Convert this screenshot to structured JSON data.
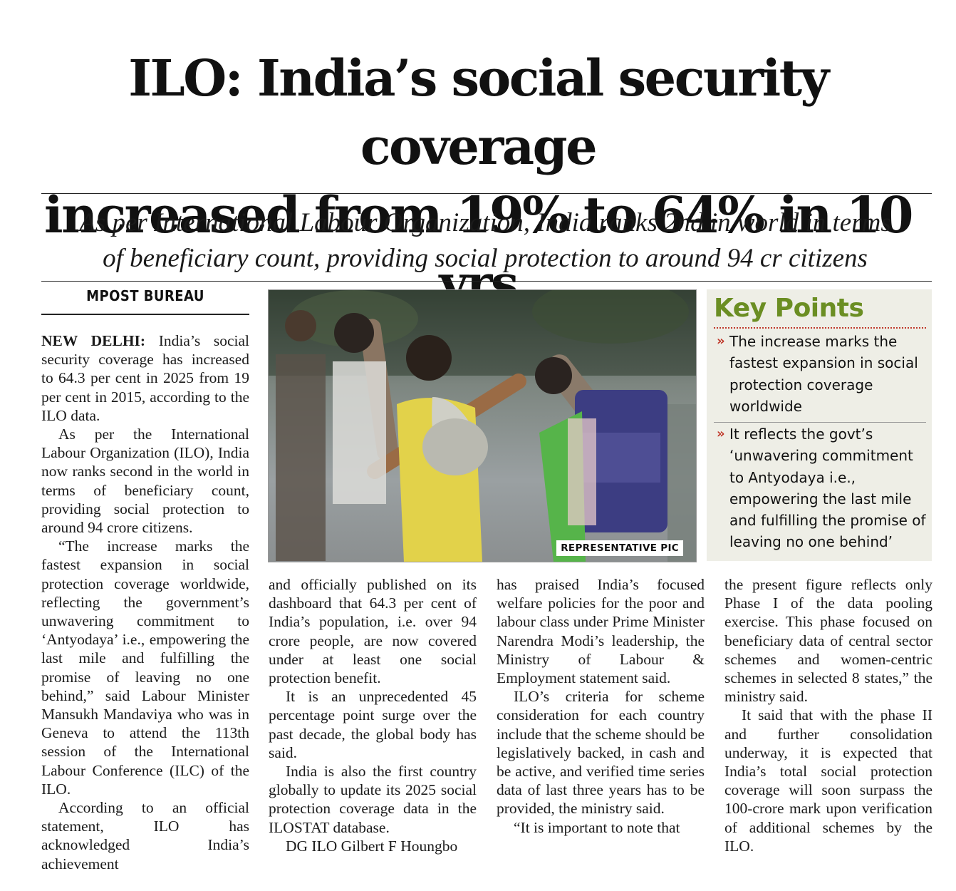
{
  "headline": {
    "line1": "ILO: India’s social security coverage",
    "line2": "increased from 19% to 64% in 10 yrs"
  },
  "deck": {
    "line1": "As per International Labour Organization, India ranks 2nd in world in terms",
    "line2": "of beneficiary count, providing social protection to around 94 cr citizens"
  },
  "byline": "MPOST BUREAU",
  "photo": {
    "credit": "REPRESENTATIVE PIC"
  },
  "key_points": {
    "title": "Key Points",
    "items": [
      "The increase marks the fastest expansion in social protection coverage worldwide",
      "It reflects the govt’s ‘unwavering commitment to Antyodaya i.e., empowering the last mile and fulfilling the promise of leaving no one behind’"
    ]
  },
  "article": {
    "dateline": "NEW DELHI:",
    "col1": [
      " India’s social security coverage has increased to 64.3 per cent in 2025 from 19 per cent in 2015, according to the ILO data.",
      "As per the International Labour Organization (ILO), India now ranks second in the world in terms of beneficiary count, providing social protection to around 94 crore citizens.",
      "“The increase marks the fastest expansion in social protection coverage worldwide, reflecting the government’s unwavering commitment to ‘Antyodaya’ i.e., empowering the last mile and fulfilling the promise of leaving no one behind,” said Labour Minister Mansukh Mandaviya who was in Geneva to attend the 113th session of the International Labour Conference (ILC) of the ILO.",
      "According to an official statement, ILO has acknowledged India’s achievement"
    ],
    "col2": [
      "and officially published on its dashboard that 64.3 per cent of India’s population, i.e. over 94 crore people, are now covered under at least one social protection benefit.",
      "It is an unprecedented 45 percentage point surge over the past decade, the global body has said.",
      "India is also the first country globally to update its 2025 social protection coverage data in the ILOSTAT database.",
      "DG ILO Gilbert F Houngbo"
    ],
    "col3": [
      "has praised India’s focused welfare policies for the poor and labour class under Prime Minister Narendra Modi’s leadership, the Ministry of Labour & Employment statement said.",
      "ILO’s criteria for scheme consideration for each country include that the scheme should be legislatively backed, in cash and be active, and verified time series data of last three years has to be provided, the ministry said.",
      "“It is important to note that"
    ],
    "col4": [
      "the present figure reflects only Phase I of the data pooling exercise. This phase focused on beneficiary data of central sector schemes and women-centric schemes in selected 8 states,” the ministry said.",
      "It said that with the phase II and further consolidation underway, it is expected that India’s total social protection coverage will soon surpass the 100-crore mark upon verification of additional schemes by the ILO."
    ]
  },
  "colors": {
    "key_title": "#6b8e23",
    "bullet": "#c0392b",
    "key_bg": "#eeeee6"
  }
}
